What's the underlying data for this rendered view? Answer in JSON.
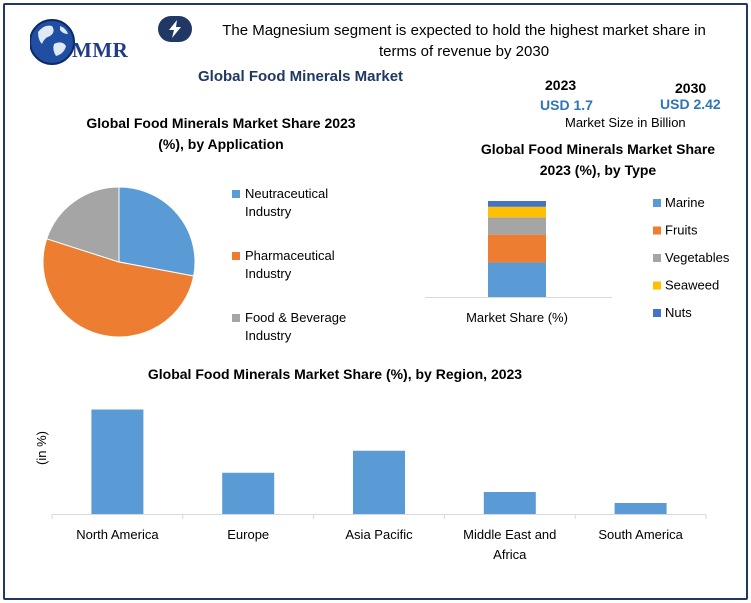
{
  "header": {
    "logo_text": "MMR",
    "headline": "The Magnesium segment is expected to hold the highest market share in terms of revenue by 2030",
    "market_title": "Global Food Minerals Market"
  },
  "market_size": {
    "year_2023": "2023",
    "value_2023": "USD 1.7",
    "year_2030": "2030",
    "value_2030": "USD 2.42",
    "unit_label": "Market Size in Billion"
  },
  "colors": {
    "blue": "#5b9bd5",
    "orange": "#ed7d31",
    "gray": "#a5a5a5",
    "yellow": "#ffc000",
    "darkblue": "#4472c4",
    "frame": "#1f3864"
  },
  "chart_data": [
    {
      "type": "pie",
      "title": "Global Food Minerals Market Share 2023 (%), by Application",
      "labels": [
        "Neutraceutical Industry",
        "Pharmaceutical Industry",
        "Food & Beverage Industry"
      ],
      "values": [
        28,
        52,
        20
      ],
      "colors": [
        "#5b9bd5",
        "#ed7d31",
        "#a5a5a5"
      ],
      "legend": "right"
    },
    {
      "type": "bar",
      "stacked": true,
      "title": "Global Food Minerals Market Share 2023 (%), by Type",
      "categories": [
        "Market Share (%)"
      ],
      "series": [
        {
          "name": "Marine",
          "values": [
            36
          ],
          "color": "#5b9bd5"
        },
        {
          "name": "Fruits",
          "values": [
            29
          ],
          "color": "#ed7d31"
        },
        {
          "name": "Vegetables",
          "values": [
            18
          ],
          "color": "#a5a5a5"
        },
        {
          "name": "Seaweed",
          "values": [
            11
          ],
          "color": "#ffc000"
        },
        {
          "name": "Nuts",
          "values": [
            6
          ],
          "color": "#4472c4"
        }
      ],
      "ylim": [
        0,
        100
      ],
      "legend": "right"
    },
    {
      "type": "bar",
      "title": "Global Food Minerals Market Share (%), by Region, 2023",
      "categories": [
        "North America",
        "Europe",
        "Asia Pacific",
        "Middle East and Africa",
        "South America"
      ],
      "values": [
        38,
        15,
        23,
        8,
        4
      ],
      "ylabel": "(in %)",
      "ylim": [
        0,
        40
      ],
      "color": "#5b9bd5"
    }
  ]
}
